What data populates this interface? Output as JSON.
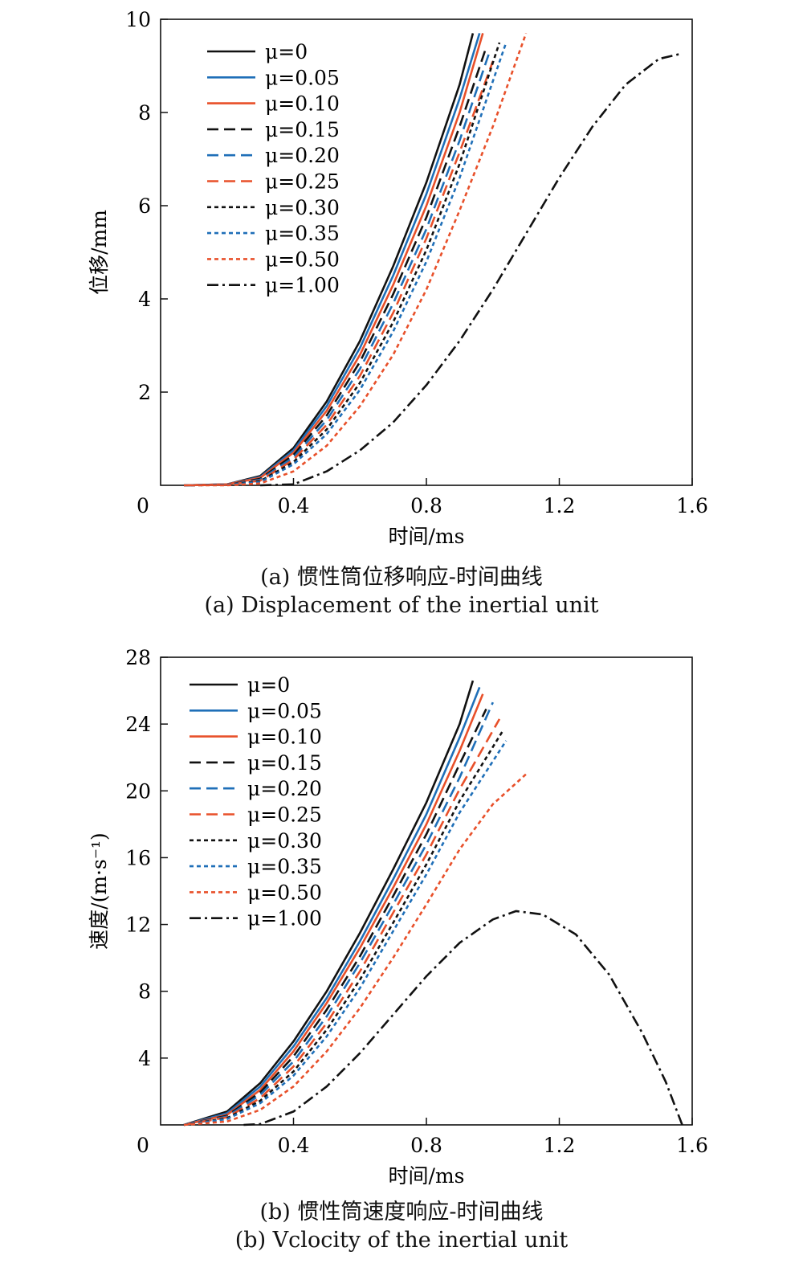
{
  "colors": {
    "black": "#111111",
    "blue": "#1f6fb8",
    "orange": "#e8502a"
  },
  "chart_data": [
    {
      "type": "line",
      "caption_cn": "(a) 惯性筒位移响应-时间曲线",
      "caption_en": "(a) Displacement of the inertial unit",
      "xlabel": "时间/ms",
      "ylabel": "位移/mm",
      "xlim": [
        0,
        1.6
      ],
      "ylim": [
        0,
        10
      ],
      "xticks": [
        "0.4",
        "0.8",
        "1.2",
        "1.6"
      ],
      "yticks": [
        "2",
        "4",
        "6",
        "8",
        "10"
      ],
      "origin_label": "0",
      "legend_position": "top-left",
      "series": [
        {
          "name": "μ=0",
          "color": "black",
          "dash": "solid",
          "points": [
            [
              0.07,
              0
            ],
            [
              0.2,
              0.02
            ],
            [
              0.3,
              0.2
            ],
            [
              0.4,
              0.8
            ],
            [
              0.5,
              1.8
            ],
            [
              0.6,
              3.1
            ],
            [
              0.7,
              4.7
            ],
            [
              0.8,
              6.5
            ],
            [
              0.9,
              8.6
            ],
            [
              0.94,
              9.7
            ]
          ]
        },
        {
          "name": "μ=0.05",
          "color": "blue",
          "dash": "solid",
          "points": [
            [
              0.07,
              0
            ],
            [
              0.2,
              0.02
            ],
            [
              0.3,
              0.18
            ],
            [
              0.4,
              0.75
            ],
            [
              0.5,
              1.7
            ],
            [
              0.6,
              2.95
            ],
            [
              0.7,
              4.5
            ],
            [
              0.8,
              6.25
            ],
            [
              0.9,
              8.3
            ],
            [
              0.96,
              9.7
            ]
          ]
        },
        {
          "name": "μ=0.10",
          "color": "orange",
          "dash": "solid",
          "points": [
            [
              0.07,
              0
            ],
            [
              0.2,
              0.02
            ],
            [
              0.3,
              0.16
            ],
            [
              0.4,
              0.7
            ],
            [
              0.5,
              1.6
            ],
            [
              0.6,
              2.8
            ],
            [
              0.7,
              4.3
            ],
            [
              0.8,
              6.0
            ],
            [
              0.9,
              8.0
            ],
            [
              0.97,
              9.7
            ]
          ]
        },
        {
          "name": "μ=0.15",
          "color": "black",
          "dash": "dash",
          "points": [
            [
              0.07,
              0
            ],
            [
              0.2,
              0.01
            ],
            [
              0.3,
              0.14
            ],
            [
              0.4,
              0.65
            ],
            [
              0.5,
              1.5
            ],
            [
              0.6,
              2.65
            ],
            [
              0.7,
              4.1
            ],
            [
              0.8,
              5.75
            ],
            [
              0.9,
              7.7
            ],
            [
              0.98,
              9.4
            ]
          ]
        },
        {
          "name": "μ=0.20",
          "color": "blue",
          "dash": "dash",
          "points": [
            [
              0.07,
              0
            ],
            [
              0.2,
              0.01
            ],
            [
              0.3,
              0.12
            ],
            [
              0.4,
              0.6
            ],
            [
              0.5,
              1.4
            ],
            [
              0.6,
              2.5
            ],
            [
              0.7,
              3.9
            ],
            [
              0.8,
              5.5
            ],
            [
              0.9,
              7.4
            ],
            [
              0.99,
              9.3
            ]
          ]
        },
        {
          "name": "μ=0.25",
          "color": "orange",
          "dash": "dash",
          "points": [
            [
              0.07,
              0
            ],
            [
              0.2,
              0.01
            ],
            [
              0.3,
              0.1
            ],
            [
              0.4,
              0.55
            ],
            [
              0.5,
              1.3
            ],
            [
              0.6,
              2.35
            ],
            [
              0.7,
              3.7
            ],
            [
              0.8,
              5.3
            ],
            [
              0.9,
              7.15
            ],
            [
              1.0,
              9.1
            ]
          ]
        },
        {
          "name": "μ=0.30",
          "color": "black",
          "dash": "dot",
          "points": [
            [
              0.07,
              0
            ],
            [
              0.2,
              0.01
            ],
            [
              0.3,
              0.09
            ],
            [
              0.4,
              0.5
            ],
            [
              0.5,
              1.2
            ],
            [
              0.6,
              2.2
            ],
            [
              0.7,
              3.5
            ],
            [
              0.8,
              5.05
            ],
            [
              0.9,
              6.9
            ],
            [
              1.02,
              9.5
            ]
          ]
        },
        {
          "name": "μ=0.35",
          "color": "blue",
          "dash": "dot",
          "points": [
            [
              0.07,
              0
            ],
            [
              0.2,
              0.01
            ],
            [
              0.3,
              0.07
            ],
            [
              0.4,
              0.45
            ],
            [
              0.5,
              1.1
            ],
            [
              0.6,
              2.05
            ],
            [
              0.7,
              3.3
            ],
            [
              0.8,
              4.8
            ],
            [
              0.9,
              6.6
            ],
            [
              1.04,
              9.5
            ]
          ]
        },
        {
          "name": "μ=0.50",
          "color": "orange",
          "dash": "dot",
          "points": [
            [
              0.07,
              0
            ],
            [
              0.2,
              0
            ],
            [
              0.3,
              0.04
            ],
            [
              0.4,
              0.3
            ],
            [
              0.5,
              0.85
            ],
            [
              0.6,
              1.7
            ],
            [
              0.7,
              2.8
            ],
            [
              0.8,
              4.2
            ],
            [
              0.9,
              5.9
            ],
            [
              1.0,
              7.7
            ],
            [
              1.1,
              9.7
            ]
          ]
        },
        {
          "name": "μ=1.00",
          "color": "black",
          "dash": "dashdot",
          "points": [
            [
              0.3,
              0
            ],
            [
              0.4,
              0.02
            ],
            [
              0.5,
              0.3
            ],
            [
              0.6,
              0.75
            ],
            [
              0.7,
              1.35
            ],
            [
              0.8,
              2.15
            ],
            [
              0.9,
              3.1
            ],
            [
              1.0,
              4.2
            ],
            [
              1.1,
              5.4
            ],
            [
              1.2,
              6.6
            ],
            [
              1.3,
              7.7
            ],
            [
              1.4,
              8.6
            ],
            [
              1.5,
              9.15
            ],
            [
              1.56,
              9.25
            ]
          ]
        }
      ]
    },
    {
      "type": "line",
      "caption_cn": "(b) 惯性筒速度响应-时间曲线",
      "caption_en": "(b) Vclocity of the inertial unit",
      "xlabel": "时间/ms",
      "ylabel": "速度/(m·s⁻¹)",
      "xlim": [
        0,
        1.6
      ],
      "ylim": [
        0,
        28
      ],
      "xticks": [
        "0.4",
        "0.8",
        "1.2",
        "1.6"
      ],
      "yticks": [
        "4",
        "8",
        "12",
        "16",
        "20",
        "24",
        "28"
      ],
      "origin_label": "0",
      "legend_position": "top-left",
      "series": [
        {
          "name": "μ=0",
          "color": "black",
          "dash": "solid",
          "points": [
            [
              0.07,
              0
            ],
            [
              0.2,
              0.8
            ],
            [
              0.3,
              2.5
            ],
            [
              0.4,
              5.0
            ],
            [
              0.5,
              8.0
            ],
            [
              0.6,
              11.5
            ],
            [
              0.7,
              15.3
            ],
            [
              0.8,
              19.3
            ],
            [
              0.9,
              24.0
            ],
            [
              0.94,
              26.6
            ]
          ]
        },
        {
          "name": "μ=0.05",
          "color": "blue",
          "dash": "solid",
          "points": [
            [
              0.07,
              0
            ],
            [
              0.2,
              0.7
            ],
            [
              0.3,
              2.3
            ],
            [
              0.4,
              4.7
            ],
            [
              0.5,
              7.6
            ],
            [
              0.6,
              11.0
            ],
            [
              0.7,
              14.7
            ],
            [
              0.8,
              18.6
            ],
            [
              0.9,
              23.2
            ],
            [
              0.96,
              26.2
            ]
          ]
        },
        {
          "name": "μ=0.10",
          "color": "orange",
          "dash": "solid",
          "points": [
            [
              0.07,
              0
            ],
            [
              0.2,
              0.6
            ],
            [
              0.3,
              2.1
            ],
            [
              0.4,
              4.4
            ],
            [
              0.5,
              7.3
            ],
            [
              0.6,
              10.6
            ],
            [
              0.7,
              14.2
            ],
            [
              0.8,
              18.0
            ],
            [
              0.9,
              22.4
            ],
            [
              0.97,
              25.8
            ]
          ]
        },
        {
          "name": "μ=0.15",
          "color": "black",
          "dash": "dash",
          "points": [
            [
              0.07,
              0
            ],
            [
              0.2,
              0.55
            ],
            [
              0.3,
              1.95
            ],
            [
              0.4,
              4.1
            ],
            [
              0.5,
              6.9
            ],
            [
              0.6,
              10.1
            ],
            [
              0.7,
              13.7
            ],
            [
              0.8,
              17.4
            ],
            [
              0.9,
              21.6
            ],
            [
              0.98,
              24.9
            ]
          ]
        },
        {
          "name": "μ=0.20",
          "color": "blue",
          "dash": "dash",
          "points": [
            [
              0.07,
              0
            ],
            [
              0.2,
              0.5
            ],
            [
              0.3,
              1.8
            ],
            [
              0.4,
              3.8
            ],
            [
              0.5,
              6.5
            ],
            [
              0.6,
              9.7
            ],
            [
              0.7,
              13.2
            ],
            [
              0.8,
              16.8
            ],
            [
              0.9,
              20.8
            ],
            [
              1.0,
              25.3
            ]
          ]
        },
        {
          "name": "μ=0.25",
          "color": "orange",
          "dash": "dash",
          "points": [
            [
              0.07,
              0
            ],
            [
              0.2,
              0.45
            ],
            [
              0.3,
              1.6
            ],
            [
              0.4,
              3.5
            ],
            [
              0.5,
              6.1
            ],
            [
              0.6,
              9.2
            ],
            [
              0.7,
              12.7
            ],
            [
              0.8,
              16.2
            ],
            [
              0.9,
              20.1
            ],
            [
              1.02,
              24.3
            ]
          ]
        },
        {
          "name": "μ=0.30",
          "color": "black",
          "dash": "dot",
          "points": [
            [
              0.07,
              0
            ],
            [
              0.2,
              0.4
            ],
            [
              0.3,
              1.45
            ],
            [
              0.4,
              3.2
            ],
            [
              0.5,
              5.7
            ],
            [
              0.6,
              8.7
            ],
            [
              0.7,
              12.1
            ],
            [
              0.8,
              15.6
            ],
            [
              0.9,
              19.4
            ],
            [
              1.03,
              23.6
            ]
          ]
        },
        {
          "name": "μ=0.35",
          "color": "blue",
          "dash": "dot",
          "points": [
            [
              0.07,
              0
            ],
            [
              0.2,
              0.35
            ],
            [
              0.3,
              1.3
            ],
            [
              0.4,
              2.95
            ],
            [
              0.5,
              5.3
            ],
            [
              0.6,
              8.2
            ],
            [
              0.7,
              11.6
            ],
            [
              0.8,
              15.0
            ],
            [
              0.9,
              18.7
            ],
            [
              1.04,
              23.0
            ]
          ]
        },
        {
          "name": "μ=0.50",
          "color": "orange",
          "dash": "dot",
          "points": [
            [
              0.07,
              0
            ],
            [
              0.2,
              0.2
            ],
            [
              0.3,
              0.9
            ],
            [
              0.4,
              2.3
            ],
            [
              0.5,
              4.4
            ],
            [
              0.6,
              7.0
            ],
            [
              0.7,
              10.0
            ],
            [
              0.8,
              13.2
            ],
            [
              0.9,
              16.5
            ],
            [
              1.0,
              19.2
            ],
            [
              1.1,
              21.0
            ]
          ]
        },
        {
          "name": "μ=1.00",
          "color": "black",
          "dash": "dashdot",
          "points": [
            [
              0.25,
              0
            ],
            [
              0.3,
              0.05
            ],
            [
              0.4,
              0.8
            ],
            [
              0.5,
              2.3
            ],
            [
              0.6,
              4.3
            ],
            [
              0.7,
              6.6
            ],
            [
              0.8,
              8.9
            ],
            [
              0.9,
              10.9
            ],
            [
              1.0,
              12.3
            ],
            [
              1.07,
              12.8
            ],
            [
              1.15,
              12.6
            ],
            [
              1.25,
              11.4
            ],
            [
              1.35,
              9.0
            ],
            [
              1.45,
              5.5
            ],
            [
              1.52,
              2.6
            ],
            [
              1.57,
              0
            ]
          ]
        }
      ]
    }
  ]
}
